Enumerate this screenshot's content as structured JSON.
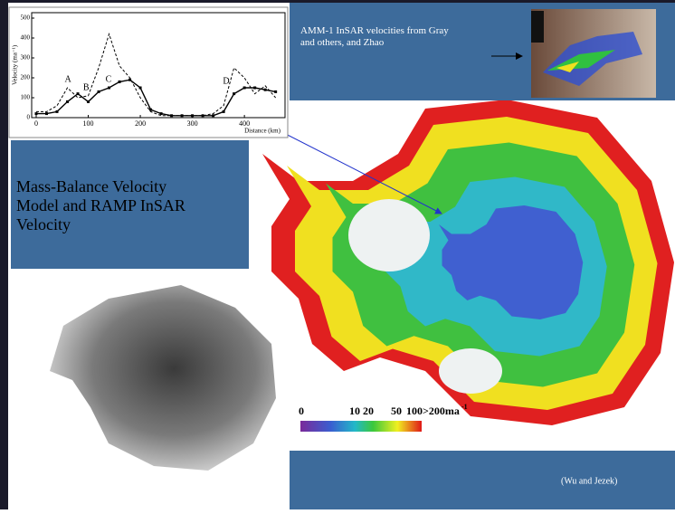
{
  "slide": {
    "top_caption": "AMM-1 InSAR velocities from Gray and others, and Zhao",
    "left_title": "Mass-Balance Velocity Model and RAMP InSAR Velocity",
    "credit": "(Wu and Jezek)",
    "colorbar": {
      "labels": [
        "0",
        "10",
        "20",
        "50",
        "100",
        ">200ma"
      ],
      "unit_exponent": "-1"
    }
  },
  "chart_data": {
    "type": "line",
    "x_label": "Distance (km)",
    "y_label": "Velocity (ma⁻¹)",
    "x": [
      0,
      20,
      40,
      60,
      80,
      100,
      120,
      140,
      160,
      180,
      200,
      220,
      240,
      260,
      280,
      300,
      320,
      340,
      360,
      380,
      400,
      420,
      440,
      460
    ],
    "series": [
      {
        "color": "#000000",
        "style": "solid",
        "values": [
          20,
          20,
          30,
          80,
          120,
          80,
          130,
          150,
          180,
          190,
          150,
          40,
          20,
          10,
          10,
          10,
          10,
          10,
          30,
          120,
          150,
          150,
          140,
          130
        ]
      },
      {
        "color": "#000000",
        "style": "dashed",
        "values": [
          30,
          30,
          60,
          150,
          100,
          110,
          250,
          420,
          260,
          200,
          100,
          30,
          10,
          10,
          10,
          10,
          10,
          20,
          60,
          250,
          200,
          120,
          160,
          100
        ]
      }
    ],
    "xlim": [
      0,
      478
    ],
    "ylim": [
      0,
      500
    ],
    "xticks": [
      0,
      100,
      200,
      300,
      400
    ],
    "yticks": [
      0,
      100,
      200,
      300,
      400,
      500
    ],
    "annotations": [
      {
        "text": "A",
        "x": 61,
        "y": 190
      },
      {
        "text": "B",
        "x": 96,
        "y": 150
      },
      {
        "text": "C",
        "x": 139,
        "y": 190
      },
      {
        "text": "D",
        "x": 365,
        "y": 180
      }
    ]
  }
}
